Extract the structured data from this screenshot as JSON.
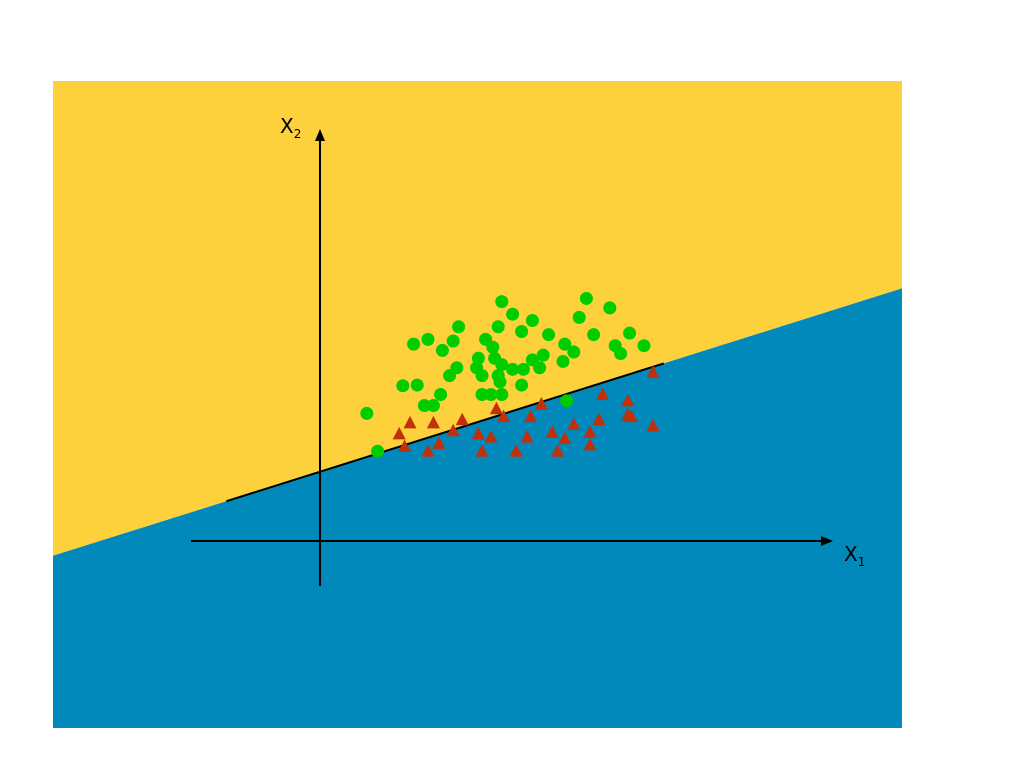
{
  "colors": {
    "upper_region": "#fdd13b",
    "lower_region": "#0089ba",
    "class_a": "#00cc00",
    "class_b": "#c0300a",
    "line": "#000000"
  },
  "axes": {
    "x_label": "X",
    "x_sub": "1",
    "y_label": "X",
    "y_sub": "2"
  },
  "chart_data": {
    "type": "scatter",
    "xlabel": "X1",
    "ylabel": "X2",
    "xlim": [
      -2.5,
      9.8
    ],
    "ylim": [
      -0.85,
      7.5
    ],
    "decision_boundary": {
      "slope": 0.36,
      "intercept": 2.2,
      "x_range": [
        -2.6,
        9.55
      ]
    },
    "series": [
      {
        "marker": "circle",
        "points": [
          [
            1.6,
            2.85
          ],
          [
            1.3,
            4.05
          ],
          [
            2.3,
            4.93
          ],
          [
            2.7,
            4.95
          ],
          [
            3.35,
            4.65
          ],
          [
            4.4,
            5.8
          ],
          [
            4.85,
            5.8
          ],
          [
            4.5,
            5.25
          ],
          [
            4.95,
            5.25
          ],
          [
            5.0,
            5.05
          ],
          [
            5.05,
            5.6
          ],
          [
            5.35,
            5.45
          ],
          [
            5.65,
            5.45
          ],
          [
            6.1,
            5.5
          ],
          [
            6.35,
            6.55
          ],
          [
            6.2,
            5.9
          ],
          [
            5.9,
            5.75
          ],
          [
            6.75,
            5.7
          ],
          [
            6.8,
            6.25
          ],
          [
            6.85,
            4.45
          ],
          [
            7.2,
            7.1
          ],
          [
            7.6,
            6.55
          ],
          [
            8.2,
            6.2
          ],
          [
            9.0,
            6.2
          ],
          [
            3.8,
            5.5
          ],
          [
            2.9,
            4.3
          ],
          [
            3.15,
            4.3
          ],
          [
            3.6,
            5.25
          ],
          [
            2.6,
            6.25
          ],
          [
            3.4,
            6.05
          ],
          [
            3.0,
            6.4
          ],
          [
            3.85,
            6.8
          ],
          [
            4.6,
            6.4
          ],
          [
            4.5,
            4.65
          ],
          [
            4.75,
            4.65
          ],
          [
            5.05,
            4.65
          ],
          [
            5.6,
            4.95
          ],
          [
            4.95,
            6.8
          ],
          [
            5.35,
            7.2
          ],
          [
            5.05,
            7.6
          ],
          [
            5.9,
            7.0
          ],
          [
            5.6,
            6.65
          ],
          [
            7.05,
            6.0
          ],
          [
            7.4,
            7.7
          ],
          [
            8.05,
            7.4
          ],
          [
            8.35,
            5.95
          ],
          [
            8.6,
            6.6
          ],
          [
            4.35,
            5.5
          ],
          [
            4.8,
            6.15
          ],
          [
            3.7,
            6.35
          ]
        ]
      },
      {
        "marker": "triangle",
        "points": [
          [
            2.2,
            3.4
          ],
          [
            2.35,
            3.0
          ],
          [
            2.5,
            3.75
          ],
          [
            3.0,
            2.85
          ],
          [
            3.15,
            3.75
          ],
          [
            3.7,
            3.5
          ],
          [
            3.95,
            3.85
          ],
          [
            4.5,
            2.85
          ],
          [
            4.75,
            3.3
          ],
          [
            4.9,
            4.2
          ],
          [
            5.1,
            3.95
          ],
          [
            5.45,
            2.85
          ],
          [
            5.75,
            3.3
          ],
          [
            6.15,
            4.35
          ],
          [
            6.45,
            3.45
          ],
          [
            6.6,
            2.85
          ],
          [
            7.05,
            3.7
          ],
          [
            7.5,
            3.45
          ],
          [
            7.75,
            3.85
          ],
          [
            7.85,
            4.65
          ],
          [
            8.55,
            4.0
          ],
          [
            8.55,
            4.45
          ],
          [
            9.25,
            3.65
          ],
          [
            9.25,
            5.35
          ],
          [
            3.3,
            3.1
          ],
          [
            4.4,
            3.4
          ],
          [
            5.85,
            3.95
          ],
          [
            6.8,
            3.25
          ],
          [
            7.5,
            3.05
          ],
          [
            8.65,
            3.95
          ]
        ]
      }
    ]
  }
}
